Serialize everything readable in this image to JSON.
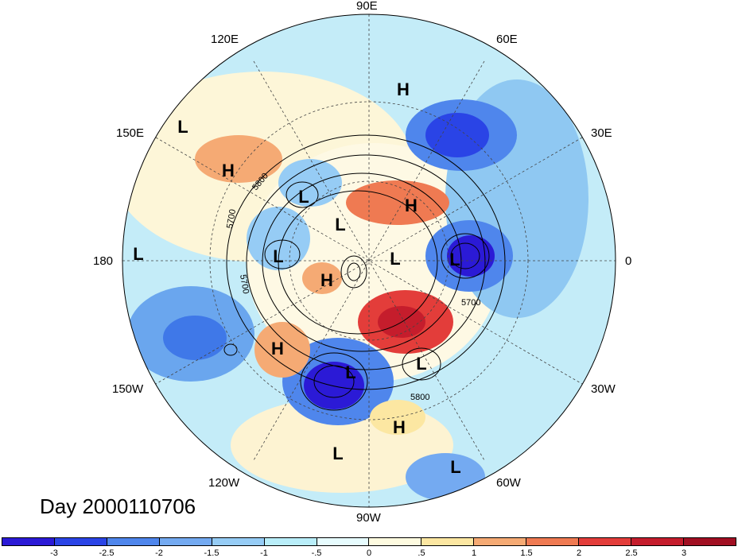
{
  "title": "Day 2000110706",
  "longitude_labels": [
    "90E",
    "60E",
    "30E",
    "0",
    "30W",
    "60W",
    "90W",
    "120W",
    "150W",
    "180",
    "150E",
    "120E"
  ],
  "contour_labels": [
    "5800",
    "5700",
    "5700",
    "5700",
    "5800"
  ],
  "pressure_centers": [
    {
      "type": "H",
      "name": "high-siberia"
    },
    {
      "type": "L",
      "name": "low-pacific-west"
    },
    {
      "type": "H",
      "name": "high-kamchatka"
    },
    {
      "type": "L",
      "name": "low-dateline"
    },
    {
      "type": "L",
      "name": "low-east-siberia"
    },
    {
      "type": "L",
      "name": "low-chukotka"
    },
    {
      "type": "L",
      "name": "low-bering"
    },
    {
      "type": "H",
      "name": "high-barents"
    },
    {
      "type": "L",
      "name": "low-arctic-center"
    },
    {
      "type": "L",
      "name": "low-scandinavia"
    },
    {
      "type": "H",
      "name": "high-alaska"
    },
    {
      "type": "H",
      "name": "high-gulf-of-alaska"
    },
    {
      "type": "L",
      "name": "low-north-america"
    },
    {
      "type": "L",
      "name": "low-labrador"
    },
    {
      "type": "H",
      "name": "high-caribbean"
    },
    {
      "type": "L",
      "name": "low-mexico"
    },
    {
      "type": "L",
      "name": "low-south-america"
    }
  ],
  "colorbar": {
    "tick_labels": [
      "-3",
      "-2.5",
      "-2",
      "-1.5",
      "-1",
      "-.5",
      "0",
      ".5",
      "1",
      "1.5",
      "2",
      "2.5",
      "3"
    ],
    "colors": [
      "#2b1ad6",
      "#2a44e6",
      "#4f86ec",
      "#74aaf1",
      "#96ccf5",
      "#b9eef9",
      "#e7fcfe",
      "#fefbe0",
      "#fce7a2",
      "#f5aa74",
      "#ef7a52",
      "#e33d3a",
      "#c51d2c",
      "#a10f22"
    ]
  },
  "colors": {
    "strong_low": "#2b1ad6",
    "weak_anomaly": "#e7fcfe",
    "strong_high": "#c51d2c"
  }
}
